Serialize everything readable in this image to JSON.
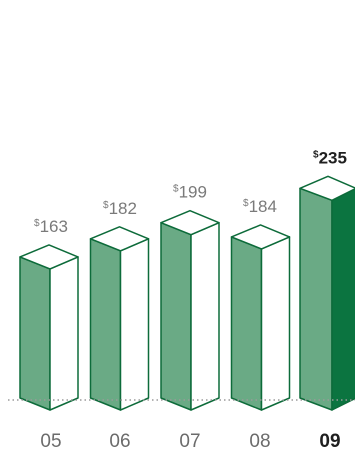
{
  "chart_data": {
    "type": "bar",
    "categories": [
      "05",
      "06",
      "07",
      "08",
      "09"
    ],
    "values": [
      163,
      182,
      199,
      184,
      235
    ],
    "value_prefix": "$",
    "value_labels": [
      "163",
      "182",
      "199",
      "184",
      "235"
    ],
    "highlight_index": 4,
    "grid": false,
    "legend": "none"
  },
  "colors": {
    "bar_face": "#6aaa85",
    "bar_face_highlight": "#0b7440",
    "bar_side": "#ffffff",
    "bar_stroke": "#0d6b3a",
    "baseline": "#9a9a9a"
  }
}
